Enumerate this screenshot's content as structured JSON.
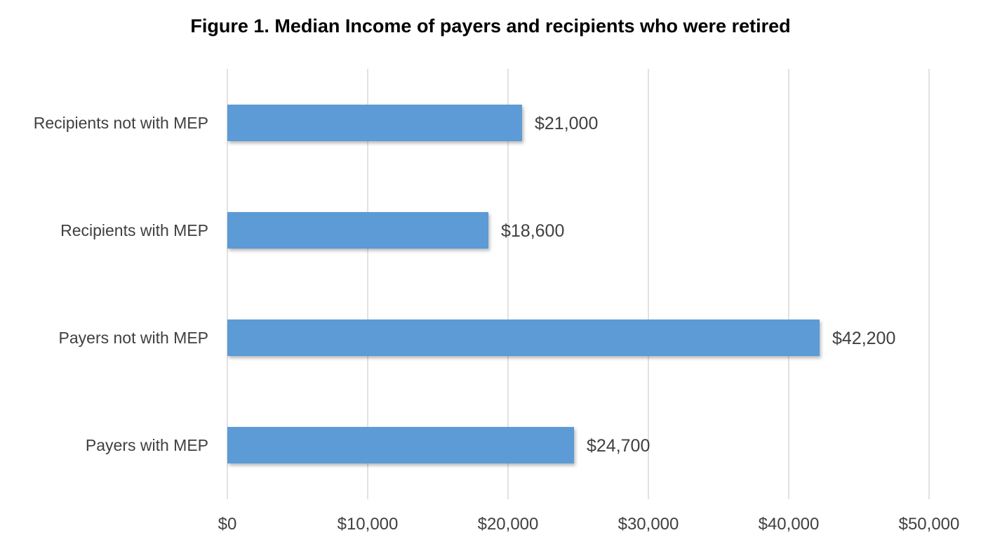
{
  "chart_data": {
    "type": "bar",
    "orientation": "horizontal",
    "title": "Figure 1. Median Income of payers and recipients who were retired",
    "xlabel": "",
    "ylabel": "",
    "categories": [
      "Recipients not with MEP",
      "Recipients with MEP",
      "Payers not with MEP",
      "Payers with MEP"
    ],
    "values": [
      21000,
      18600,
      42200,
      24700
    ],
    "data_labels": [
      "$21,000",
      "$18,600",
      "$42,200",
      "$24,700"
    ],
    "xlim": [
      0,
      50000
    ],
    "x_ticks": [
      0,
      10000,
      20000,
      30000,
      40000,
      50000
    ],
    "x_tick_labels": [
      "$0",
      "$10,000",
      "$20,000",
      "$30,000",
      "$40,000",
      "$50,000"
    ],
    "grid": "vertical",
    "legend": "none",
    "colors": {
      "bar": "#5b9bd5",
      "grid": "#d9d9d9",
      "text": "#404040",
      "title": "#000000"
    }
  }
}
